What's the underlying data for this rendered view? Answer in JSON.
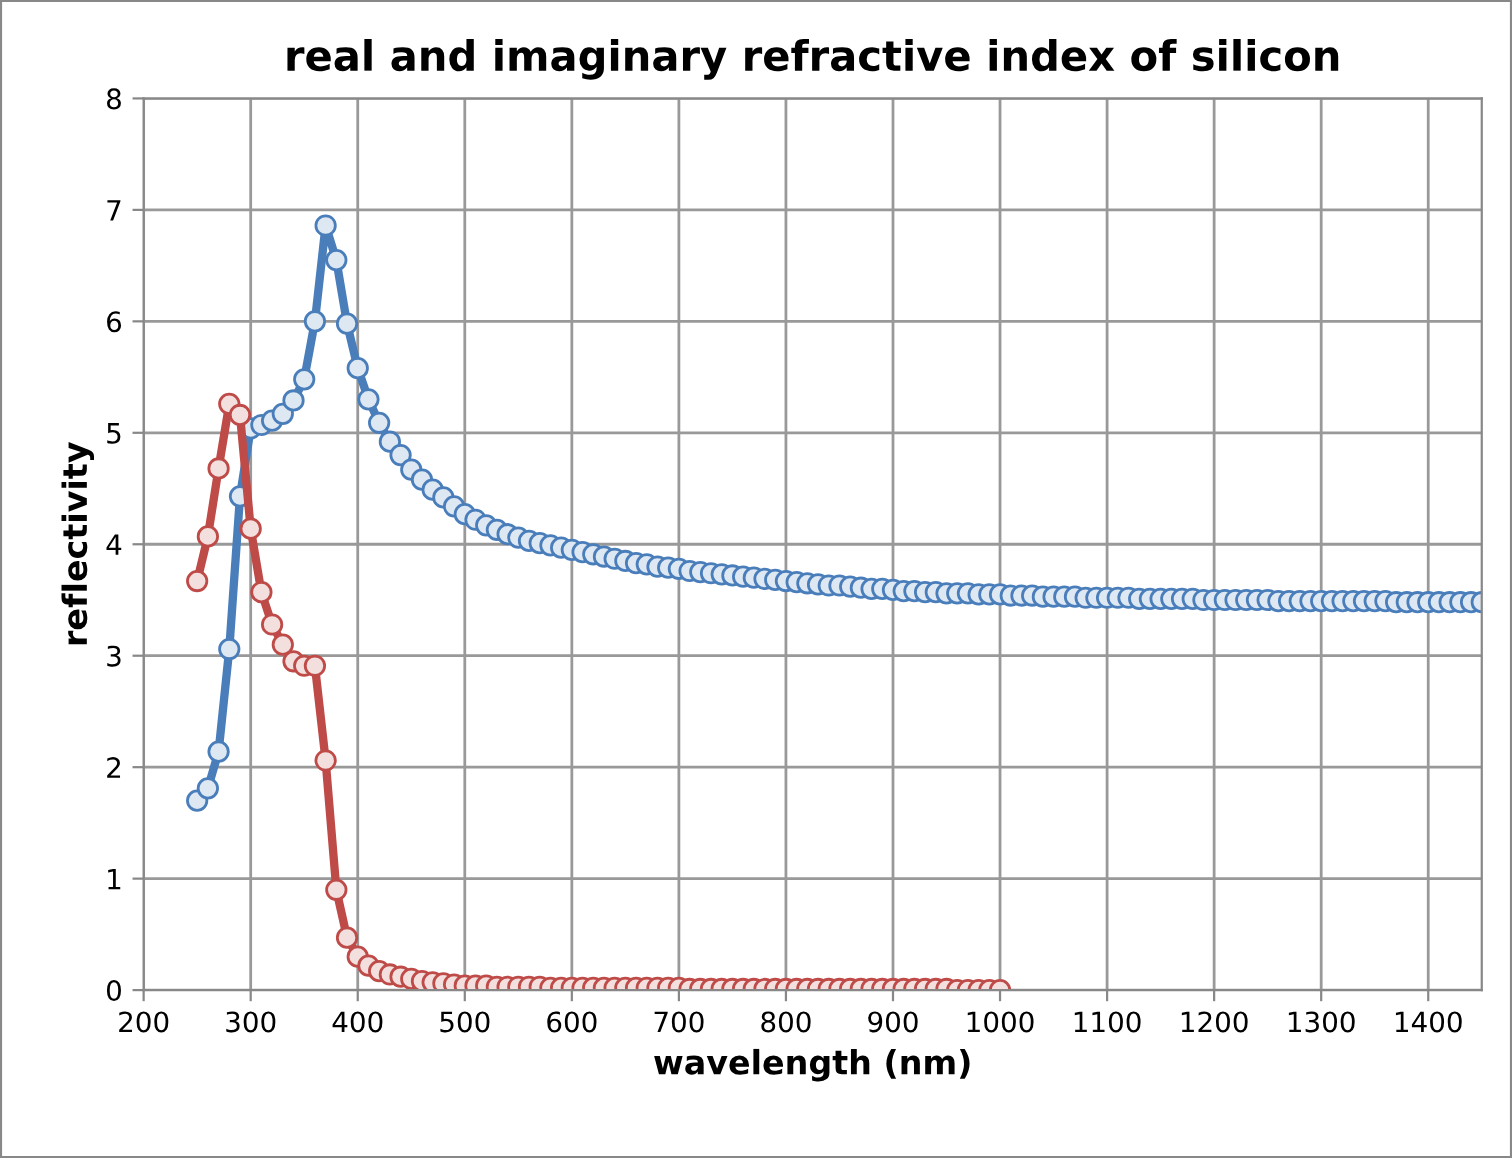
{
  "chart_data": {
    "type": "line",
    "title": "real and imaginary refractive index of silicon",
    "xlabel": "wavelength (nm)",
    "ylabel": "reflectivity",
    "xlim": [
      200,
      1450
    ],
    "xticks": [
      200,
      300,
      400,
      500,
      600,
      700,
      800,
      900,
      1000,
      1100,
      1200,
      1300,
      1400
    ],
    "ylim": [
      0,
      8
    ],
    "yticks": [
      0,
      1,
      2,
      3,
      4,
      5,
      6,
      7,
      8
    ],
    "grid": true,
    "marker": "circle",
    "line_style": "solid",
    "series": [
      {
        "color": "#4a7ebb",
        "x": [
          250,
          260,
          270,
          280,
          290,
          300,
          310,
          320,
          330,
          340,
          350,
          360,
          370,
          380,
          390,
          400,
          410,
          420,
          430,
          440,
          450,
          460,
          470,
          480,
          490,
          500,
          510,
          520,
          530,
          540,
          550,
          560,
          570,
          580,
          590,
          600,
          610,
          620,
          630,
          640,
          650,
          660,
          670,
          680,
          690,
          700,
          710,
          720,
          730,
          740,
          750,
          760,
          770,
          780,
          790,
          800,
          810,
          820,
          830,
          840,
          850,
          860,
          870,
          880,
          890,
          900,
          910,
          920,
          930,
          940,
          950,
          960,
          970,
          980,
          990,
          1000,
          1010,
          1020,
          1030,
          1040,
          1050,
          1060,
          1070,
          1080,
          1090,
          1100,
          1110,
          1120,
          1130,
          1140,
          1150,
          1160,
          1170,
          1180,
          1190,
          1200,
          1210,
          1220,
          1230,
          1240,
          1250,
          1260,
          1270,
          1280,
          1290,
          1300,
          1310,
          1320,
          1330,
          1340,
          1350,
          1360,
          1370,
          1380,
          1390,
          1400,
          1410,
          1420,
          1430,
          1440,
          1450
        ],
        "values": [
          1.7,
          1.81,
          2.14,
          3.06,
          4.43,
          5.04,
          5.07,
          5.11,
          5.17,
          5.29,
          5.48,
          6.0,
          6.86,
          6.55,
          5.98,
          5.58,
          5.3,
          5.09,
          4.92,
          4.8,
          4.67,
          4.58,
          4.49,
          4.42,
          4.34,
          4.27,
          4.22,
          4.17,
          4.13,
          4.09,
          4.06,
          4.03,
          4.01,
          3.99,
          3.97,
          3.95,
          3.93,
          3.91,
          3.89,
          3.87,
          3.85,
          3.83,
          3.82,
          3.8,
          3.79,
          3.78,
          3.76,
          3.75,
          3.74,
          3.73,
          3.72,
          3.71,
          3.7,
          3.69,
          3.68,
          3.67,
          3.66,
          3.65,
          3.64,
          3.63,
          3.63,
          3.62,
          3.61,
          3.6,
          3.6,
          3.59,
          3.58,
          3.58,
          3.57,
          3.57,
          3.56,
          3.56,
          3.56,
          3.55,
          3.55,
          3.55,
          3.54,
          3.54,
          3.54,
          3.53,
          3.53,
          3.53,
          3.53,
          3.52,
          3.52,
          3.52,
          3.52,
          3.52,
          3.51,
          3.51,
          3.51,
          3.51,
          3.51,
          3.51,
          3.5,
          3.5,
          3.5,
          3.5,
          3.5,
          3.5,
          3.5,
          3.49,
          3.49,
          3.49,
          3.49,
          3.49,
          3.49,
          3.49,
          3.49,
          3.49,
          3.49,
          3.49,
          3.48,
          3.48,
          3.48,
          3.48,
          3.48,
          3.48,
          3.48,
          3.48,
          3.48
        ]
      },
      {
        "color": "#be4b48",
        "x": [
          250,
          260,
          270,
          280,
          290,
          300,
          310,
          320,
          330,
          340,
          350,
          360,
          370,
          380,
          390,
          400,
          410,
          420,
          430,
          440,
          450,
          460,
          470,
          480,
          490,
          500,
          510,
          520,
          530,
          540,
          550,
          560,
          570,
          580,
          590,
          600,
          610,
          620,
          630,
          640,
          650,
          660,
          670,
          680,
          690,
          700,
          710,
          720,
          730,
          740,
          750,
          760,
          770,
          780,
          790,
          800,
          810,
          820,
          830,
          840,
          850,
          860,
          870,
          880,
          890,
          900,
          910,
          920,
          930,
          940,
          950,
          960,
          970,
          980,
          990,
          1000
        ],
        "values": [
          3.67,
          4.07,
          4.68,
          5.26,
          5.16,
          4.14,
          3.57,
          3.28,
          3.1,
          2.95,
          2.91,
          2.91,
          2.06,
          0.9,
          0.47,
          0.3,
          0.22,
          0.17,
          0.14,
          0.12,
          0.1,
          0.08,
          0.07,
          0.06,
          0.05,
          0.04,
          0.04,
          0.04,
          0.03,
          0.03,
          0.03,
          0.03,
          0.03,
          0.02,
          0.02,
          0.02,
          0.02,
          0.02,
          0.02,
          0.02,
          0.02,
          0.02,
          0.02,
          0.02,
          0.02,
          0.02,
          0.01,
          0.01,
          0.01,
          0.01,
          0.01,
          0.01,
          0.01,
          0.01,
          0.01,
          0.01,
          0.01,
          0.01,
          0.01,
          0.01,
          0.01,
          0.01,
          0.01,
          0.01,
          0.01,
          0.01,
          0.01,
          0.01,
          0.01,
          0.01,
          0.01,
          0.0,
          0.0,
          0.0,
          0.0,
          0.0
        ]
      }
    ]
  }
}
